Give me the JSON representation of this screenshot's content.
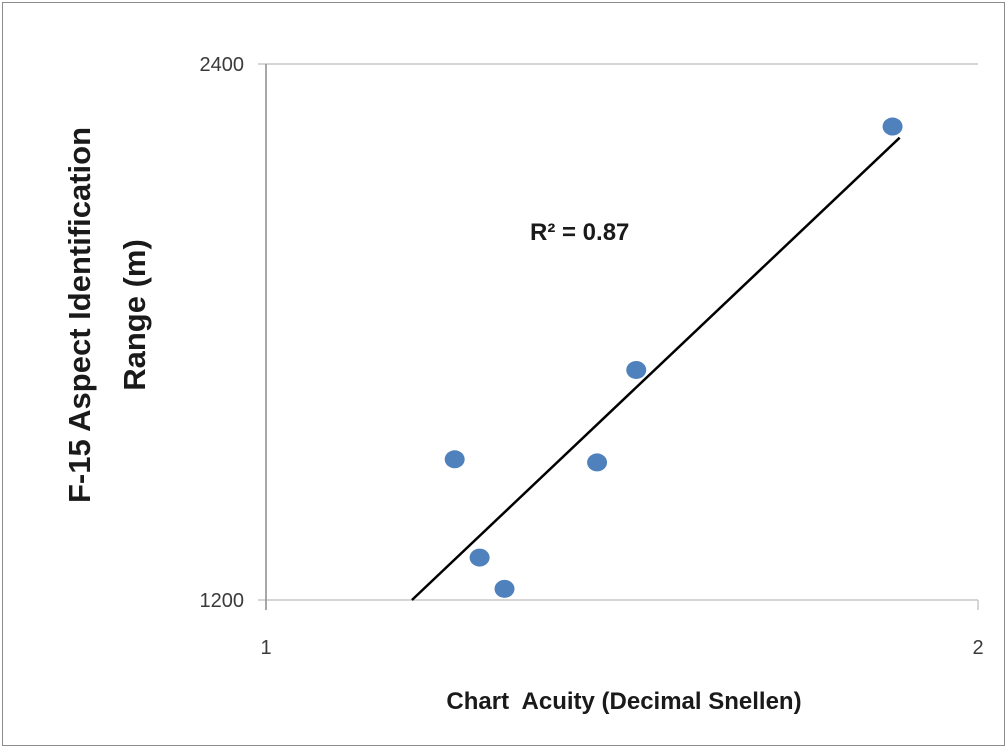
{
  "chart_data": {
    "type": "scatter",
    "title": "",
    "xlabel": "Chart  Acuity (Decimal Snellen)",
    "ylabel_lines": [
      "F-15 Aspect Identification",
      "Range (m)"
    ],
    "xlim": [
      1,
      2
    ],
    "ylim": [
      1200,
      2400
    ],
    "x_ticks": [
      "1",
      "2"
    ],
    "y_ticks": [
      "1200",
      "2400"
    ],
    "grid": "horizontal",
    "points": [
      {
        "x": 1.88,
        "y": 2260
      },
      {
        "x": 1.52,
        "y": 1715
      },
      {
        "x": 1.265,
        "y": 1515
      },
      {
        "x": 1.465,
        "y": 1508
      },
      {
        "x": 1.3,
        "y": 1295
      },
      {
        "x": 1.335,
        "y": 1225
      }
    ],
    "trendline": {
      "x": [
        1.205,
        1.89
      ],
      "y": [
        1200,
        2235
      ]
    },
    "annotation": "R² = 0.87",
    "colors": {
      "points": "#4f81bd",
      "trendline": "#000000",
      "grid": "#c8c8c8"
    }
  }
}
